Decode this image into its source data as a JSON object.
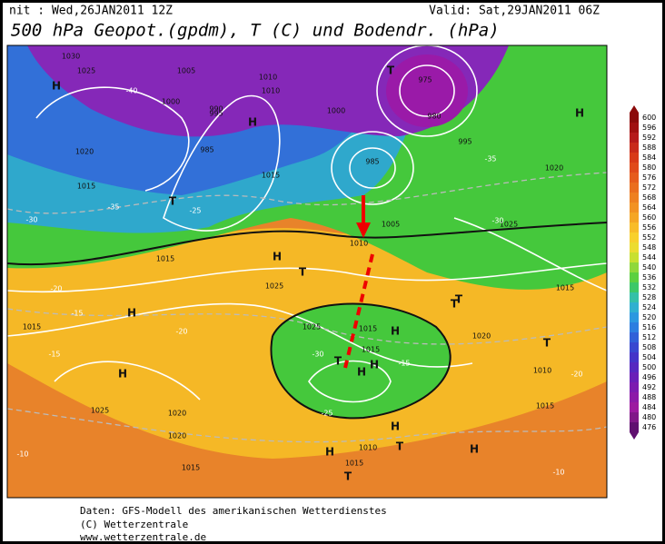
{
  "header": {
    "init": "nit : Wed,26JAN2011 12Z",
    "valid": "Valid: Sat,29JAN2011 06Z",
    "title": "500 hPa Geopot.(gpdm), T (C) und Bodendr. (hPa)"
  },
  "colorbar": {
    "levels": [
      600,
      596,
      592,
      588,
      584,
      580,
      576,
      572,
      568,
      564,
      560,
      556,
      552,
      548,
      544,
      540,
      536,
      532,
      528,
      524,
      520,
      516,
      512,
      508,
      504,
      500,
      496,
      492,
      488,
      484,
      480,
      476
    ],
    "colors": [
      "#8b0a0a",
      "#a01010",
      "#b51a1a",
      "#c82a1a",
      "#d83a18",
      "#e04a1a",
      "#e65c1c",
      "#ea6e1e",
      "#ee8020",
      "#f29222",
      "#f5a624",
      "#f8bc28",
      "#f8d02c",
      "#ecdc30",
      "#c8e030",
      "#90d83a",
      "#5cd040",
      "#3cc868",
      "#34c0a8",
      "#30b0d0",
      "#2c98e0",
      "#2c7ee0",
      "#3060d8",
      "#3848d0",
      "#4434c8",
      "#5628c0",
      "#6a20b8",
      "#7c1cb0",
      "#8c1aa8",
      "#9c1aa0",
      "#801888",
      "#601070"
    ]
  },
  "map_labels": [
    "H",
    "1025",
    "1030",
    "1005",
    "995",
    "990",
    "985",
    "1000",
    "T",
    "1010",
    "975",
    "980",
    "995",
    "1020",
    "1015",
    "T",
    "H",
    "1000",
    "1010",
    "1015",
    "1005",
    "985",
    "1020",
    "H",
    "1025",
    "H",
    "1025",
    "H",
    "1015",
    "1015",
    "H",
    "1025",
    "1020",
    "H",
    "T",
    "1015",
    "1010",
    "1015",
    "T",
    "1020",
    "H",
    "T",
    "H",
    "1015",
    "T",
    "H",
    "1010",
    "1015",
    "T",
    "H",
    "1015",
    "H",
    "T",
    "1025",
    "1020",
    "1010",
    "T",
    "1015"
  ],
  "temp_labels": [
    "-40",
    "-35",
    "-30",
    "-25",
    "-20",
    "-15",
    "-15",
    "-10",
    "-20",
    "-25",
    "-30",
    "-35",
    "-30",
    "-20",
    "-15",
    "-10"
  ],
  "footer": {
    "source": "Daten: GFS-Modell des amerikanischen Wetterdienstes",
    "copyright": "(C) Wetterzentrale",
    "url": "www.wetterzentrale.de"
  }
}
